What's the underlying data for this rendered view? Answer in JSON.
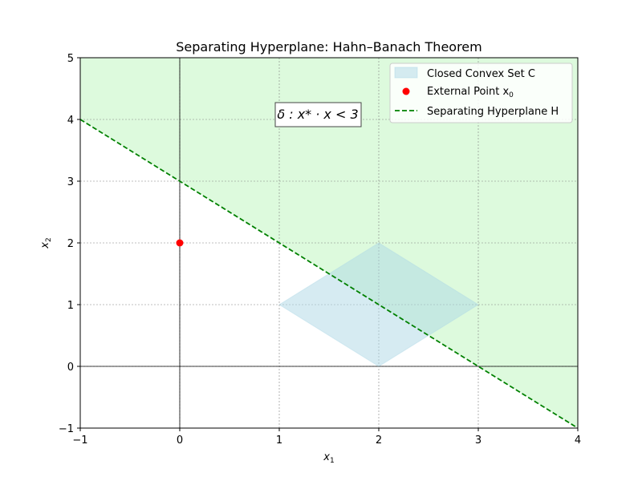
{
  "chart_data": {
    "type": "line",
    "title": "Separating Hyperplane: Hahn–Banach Theorem",
    "xlabel": "x",
    "xlabel_sub": "1",
    "ylabel": "x",
    "ylabel_sub": "2",
    "xlim": [
      -1,
      4
    ],
    "ylim": [
      -1,
      5
    ],
    "xticks": [
      -1,
      0,
      1,
      2,
      3,
      4
    ],
    "yticks": [
      -1,
      0,
      1,
      2,
      3,
      4,
      5
    ],
    "xtick_labels": [
      "−1",
      "0",
      "1",
      "2",
      "3",
      "4"
    ],
    "ytick_labels": [
      "−1",
      "0",
      "1",
      "2",
      "3",
      "4",
      "5"
    ],
    "grid": true,
    "legend_position": "upper-right",
    "convex_set": {
      "name": "Closed Convex Set C",
      "vertices": [
        [
          1,
          1
        ],
        [
          2,
          2
        ],
        [
          3,
          1
        ],
        [
          2,
          0
        ]
      ],
      "color": "#add8e6"
    },
    "external_point": {
      "name": "External Point x",
      "name_sub": "0",
      "x": 0,
      "y": 2,
      "color": "#ff0000"
    },
    "hyperplane": {
      "name": "Separating Hyperplane H",
      "equation": "x1 + x2 = 3",
      "x": [
        -1,
        4
      ],
      "y": [
        4,
        -1
      ],
      "color": "#008000"
    },
    "halfspace": {
      "description": "x1 + x2 >= 3",
      "color": "#90ee90"
    },
    "annotation": {
      "text": "δ : x* · x < 3",
      "x": 1.4,
      "y": 4.1
    }
  }
}
